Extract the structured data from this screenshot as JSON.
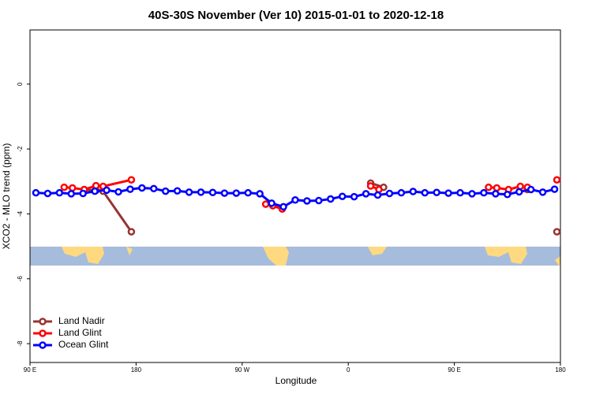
{
  "chart_data": {
    "type": "line",
    "title": "40S-30S November (Ver 10)   2015-01-01 to 2020-12-18",
    "xlabel": "Longitude",
    "ylabel": "XCO2 - MLO trend (ppm)",
    "xlim": [
      90,
      540
    ],
    "ylim": [
      -8.58,
      1.67
    ],
    "xticks": [
      {
        "value": 90,
        "label": "90 E"
      },
      180,
      {
        "value": 270,
        "label": "90 W"
      },
      {
        "value": 360,
        "label": "0"
      },
      {
        "value": 450,
        "label": "90 E"
      },
      {
        "value": 540,
        "label": "180"
      }
    ],
    "yticks": [
      0,
      -2,
      -4,
      -6,
      -8
    ],
    "legend": "bottom-left",
    "series": [
      {
        "name": "Land Nadir",
        "color": "#993333",
        "x": [
          136,
          146,
          152,
          176,
          null,
          379,
          390,
          null,
          512,
          null,
          537
        ],
        "values": [
          -3.25,
          -3.28,
          -3.3,
          -4.55,
          null,
          -3.05,
          -3.18,
          null,
          -3.25,
          null,
          -4.55
        ]
      },
      {
        "name": "Land Glint",
        "color": "#ff0000",
        "x": [
          119,
          126,
          136,
          146,
          152,
          176,
          null,
          290,
          296,
          304,
          null,
          379,
          386,
          null,
          479,
          486,
          496,
          506,
          512,
          null,
          537
        ],
        "values": [
          -3.18,
          -3.2,
          -3.25,
          -3.13,
          -3.15,
          -2.95,
          null,
          -3.7,
          -3.75,
          -3.85,
          null,
          -3.14,
          -3.25,
          null,
          -3.18,
          -3.2,
          -3.25,
          -3.15,
          -3.18,
          null,
          -2.95
        ]
      },
      {
        "name": "Ocean Glint",
        "color": "#0000ff",
        "x": [
          95,
          105,
          115,
          125,
          135,
          145,
          155,
          165,
          175,
          185,
          195,
          205,
          215,
          225,
          235,
          245,
          255,
          265,
          275,
          285,
          295,
          305,
          315,
          325,
          335,
          345,
          355,
          365,
          375,
          385,
          395,
          405,
          415,
          425,
          435,
          445,
          455,
          465,
          475,
          485,
          495,
          505,
          515,
          525,
          535
        ],
        "values": [
          -3.35,
          -3.37,
          -3.35,
          -3.38,
          -3.37,
          -3.3,
          -3.27,
          -3.32,
          -3.24,
          -3.2,
          -3.22,
          -3.3,
          -3.29,
          -3.33,
          -3.33,
          -3.34,
          -3.36,
          -3.36,
          -3.35,
          -3.38,
          -3.67,
          -3.78,
          -3.57,
          -3.6,
          -3.59,
          -3.54,
          -3.46,
          -3.47,
          -3.38,
          -3.42,
          -3.37,
          -3.35,
          -3.31,
          -3.35,
          -3.34,
          -3.36,
          -3.35,
          -3.38,
          -3.35,
          -3.38,
          -3.4,
          -3.32,
          -3.25,
          -3.33,
          -3.24
        ]
      }
    ]
  }
}
